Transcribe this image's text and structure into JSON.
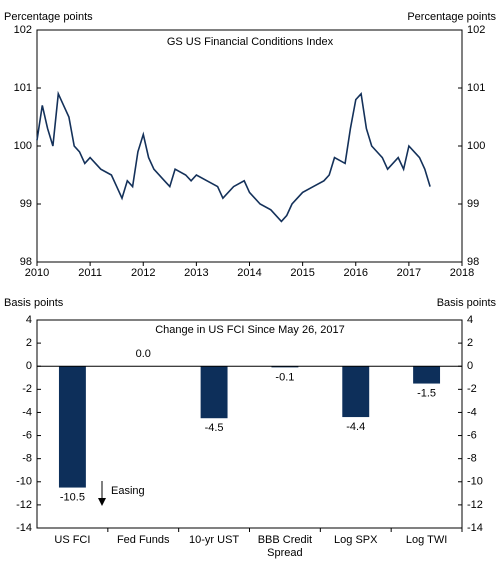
{
  "chart_data": [
    {
      "type": "line",
      "title": "GS US Financial Conditions Index",
      "y_label": "Percentage points",
      "y2_label": "Percentage points",
      "xlim": [
        2010,
        2018
      ],
      "xticks": [
        2010,
        2011,
        2012,
        2013,
        2014,
        2015,
        2016,
        2017,
        2018
      ],
      "ylim": [
        98,
        102
      ],
      "yticks": [
        98,
        99,
        100,
        101,
        102
      ],
      "y2lim": [
        98,
        102
      ],
      "y2ticks": [
        98,
        99,
        100,
        101,
        102
      ],
      "series": [
        {
          "color": "#14315a",
          "x": [
            2010.0,
            2010.1,
            2010.2,
            2010.3,
            2010.4,
            2010.5,
            2010.6,
            2010.7,
            2010.8,
            2010.9,
            2011.0,
            2011.2,
            2011.4,
            2011.5,
            2011.6,
            2011.7,
            2011.8,
            2011.9,
            2012.0,
            2012.1,
            2012.2,
            2012.4,
            2012.5,
            2012.6,
            2012.8,
            2012.9,
            2013.0,
            2013.2,
            2013.4,
            2013.5,
            2013.7,
            2013.9,
            2014.0,
            2014.2,
            2014.4,
            2014.6,
            2014.7,
            2014.8,
            2015.0,
            2015.2,
            2015.4,
            2015.5,
            2015.6,
            2015.8,
            2015.9,
            2016.0,
            2016.1,
            2016.2,
            2016.3,
            2016.5,
            2016.6,
            2016.8,
            2016.9,
            2017.0,
            2017.1,
            2017.2,
            2017.3,
            2017.4
          ],
          "values": [
            100.1,
            100.7,
            100.3,
            100.0,
            100.9,
            100.7,
            100.5,
            100.0,
            99.9,
            99.7,
            99.8,
            99.6,
            99.5,
            99.3,
            99.1,
            99.4,
            99.3,
            99.9,
            100.2,
            99.8,
            99.6,
            99.4,
            99.3,
            99.6,
            99.5,
            99.4,
            99.5,
            99.4,
            99.3,
            99.1,
            99.3,
            99.4,
            99.2,
            99.0,
            98.9,
            98.7,
            98.8,
            99.0,
            99.2,
            99.3,
            99.4,
            99.5,
            99.8,
            99.7,
            100.3,
            100.8,
            100.9,
            100.3,
            100.0,
            99.8,
            99.6,
            99.8,
            99.6,
            100.0,
            99.9,
            99.8,
            99.6,
            99.3
          ]
        }
      ]
    },
    {
      "type": "bar",
      "title": "Change in US FCI Since May 26, 2017",
      "y_label": "Basis points",
      "y2_label": "Basis points",
      "categories": [
        "US FCI",
        "Fed Funds",
        "10-yr UST",
        "BBB Credit Spread",
        "Log SPX",
        "Log TWI"
      ],
      "values": [
        -10.5,
        0,
        -4.5,
        -0.1,
        -4.4,
        -1.5
      ],
      "value_labels": [
        "-10.5",
        "0.0",
        "-4.5",
        "-0.1",
        "-4.4",
        "-1.5"
      ],
      "color": "#0d2f5a",
      "ylim": [
        -14,
        4
      ],
      "yticks": [
        -14,
        -12,
        -10,
        -8,
        -6,
        -4,
        -2,
        0,
        2,
        4
      ],
      "y2lim": [
        -14,
        4
      ],
      "y2ticks": [
        -14,
        -12,
        -10,
        -8,
        -6,
        -4,
        -2,
        0,
        2,
        4
      ],
      "annotation": "Easing"
    }
  ]
}
